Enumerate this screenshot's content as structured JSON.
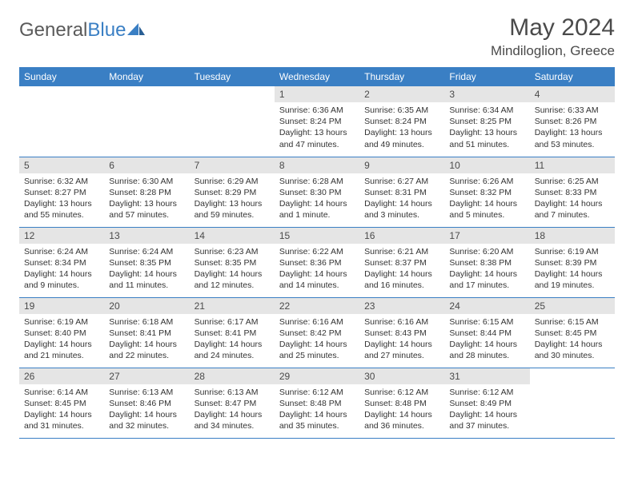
{
  "brand": {
    "name_gray": "General",
    "name_blue": "Blue"
  },
  "title": "May 2024",
  "location": "Mindiloglion, Greece",
  "colors": {
    "header_bg": "#3a7fc4",
    "daynum_bg": "#e5e5e5",
    "text": "#4a4a4a",
    "body_text": "#333333",
    "rule": "#3a7fc4",
    "page_bg": "#ffffff"
  },
  "day_names": [
    "Sunday",
    "Monday",
    "Tuesday",
    "Wednesday",
    "Thursday",
    "Friday",
    "Saturday"
  ],
  "weeks": [
    [
      null,
      null,
      null,
      {
        "n": "1",
        "sr": "6:36 AM",
        "ss": "8:24 PM",
        "dl": "13 hours and 47 minutes."
      },
      {
        "n": "2",
        "sr": "6:35 AM",
        "ss": "8:24 PM",
        "dl": "13 hours and 49 minutes."
      },
      {
        "n": "3",
        "sr": "6:34 AM",
        "ss": "8:25 PM",
        "dl": "13 hours and 51 minutes."
      },
      {
        "n": "4",
        "sr": "6:33 AM",
        "ss": "8:26 PM",
        "dl": "13 hours and 53 minutes."
      }
    ],
    [
      {
        "n": "5",
        "sr": "6:32 AM",
        "ss": "8:27 PM",
        "dl": "13 hours and 55 minutes."
      },
      {
        "n": "6",
        "sr": "6:30 AM",
        "ss": "8:28 PM",
        "dl": "13 hours and 57 minutes."
      },
      {
        "n": "7",
        "sr": "6:29 AM",
        "ss": "8:29 PM",
        "dl": "13 hours and 59 minutes."
      },
      {
        "n": "8",
        "sr": "6:28 AM",
        "ss": "8:30 PM",
        "dl": "14 hours and 1 minute."
      },
      {
        "n": "9",
        "sr": "6:27 AM",
        "ss": "8:31 PM",
        "dl": "14 hours and 3 minutes."
      },
      {
        "n": "10",
        "sr": "6:26 AM",
        "ss": "8:32 PM",
        "dl": "14 hours and 5 minutes."
      },
      {
        "n": "11",
        "sr": "6:25 AM",
        "ss": "8:33 PM",
        "dl": "14 hours and 7 minutes."
      }
    ],
    [
      {
        "n": "12",
        "sr": "6:24 AM",
        "ss": "8:34 PM",
        "dl": "14 hours and 9 minutes."
      },
      {
        "n": "13",
        "sr": "6:24 AM",
        "ss": "8:35 PM",
        "dl": "14 hours and 11 minutes."
      },
      {
        "n": "14",
        "sr": "6:23 AM",
        "ss": "8:35 PM",
        "dl": "14 hours and 12 minutes."
      },
      {
        "n": "15",
        "sr": "6:22 AM",
        "ss": "8:36 PM",
        "dl": "14 hours and 14 minutes."
      },
      {
        "n": "16",
        "sr": "6:21 AM",
        "ss": "8:37 PM",
        "dl": "14 hours and 16 minutes."
      },
      {
        "n": "17",
        "sr": "6:20 AM",
        "ss": "8:38 PM",
        "dl": "14 hours and 17 minutes."
      },
      {
        "n": "18",
        "sr": "6:19 AM",
        "ss": "8:39 PM",
        "dl": "14 hours and 19 minutes."
      }
    ],
    [
      {
        "n": "19",
        "sr": "6:19 AM",
        "ss": "8:40 PM",
        "dl": "14 hours and 21 minutes."
      },
      {
        "n": "20",
        "sr": "6:18 AM",
        "ss": "8:41 PM",
        "dl": "14 hours and 22 minutes."
      },
      {
        "n": "21",
        "sr": "6:17 AM",
        "ss": "8:41 PM",
        "dl": "14 hours and 24 minutes."
      },
      {
        "n": "22",
        "sr": "6:16 AM",
        "ss": "8:42 PM",
        "dl": "14 hours and 25 minutes."
      },
      {
        "n": "23",
        "sr": "6:16 AM",
        "ss": "8:43 PM",
        "dl": "14 hours and 27 minutes."
      },
      {
        "n": "24",
        "sr": "6:15 AM",
        "ss": "8:44 PM",
        "dl": "14 hours and 28 minutes."
      },
      {
        "n": "25",
        "sr": "6:15 AM",
        "ss": "8:45 PM",
        "dl": "14 hours and 30 minutes."
      }
    ],
    [
      {
        "n": "26",
        "sr": "6:14 AM",
        "ss": "8:45 PM",
        "dl": "14 hours and 31 minutes."
      },
      {
        "n": "27",
        "sr": "6:13 AM",
        "ss": "8:46 PM",
        "dl": "14 hours and 32 minutes."
      },
      {
        "n": "28",
        "sr": "6:13 AM",
        "ss": "8:47 PM",
        "dl": "14 hours and 34 minutes."
      },
      {
        "n": "29",
        "sr": "6:12 AM",
        "ss": "8:48 PM",
        "dl": "14 hours and 35 minutes."
      },
      {
        "n": "30",
        "sr": "6:12 AM",
        "ss": "8:48 PM",
        "dl": "14 hours and 36 minutes."
      },
      {
        "n": "31",
        "sr": "6:12 AM",
        "ss": "8:49 PM",
        "dl": "14 hours and 37 minutes."
      },
      null
    ]
  ],
  "labels": {
    "sunrise": "Sunrise:",
    "sunset": "Sunset:",
    "daylight": "Daylight:"
  }
}
